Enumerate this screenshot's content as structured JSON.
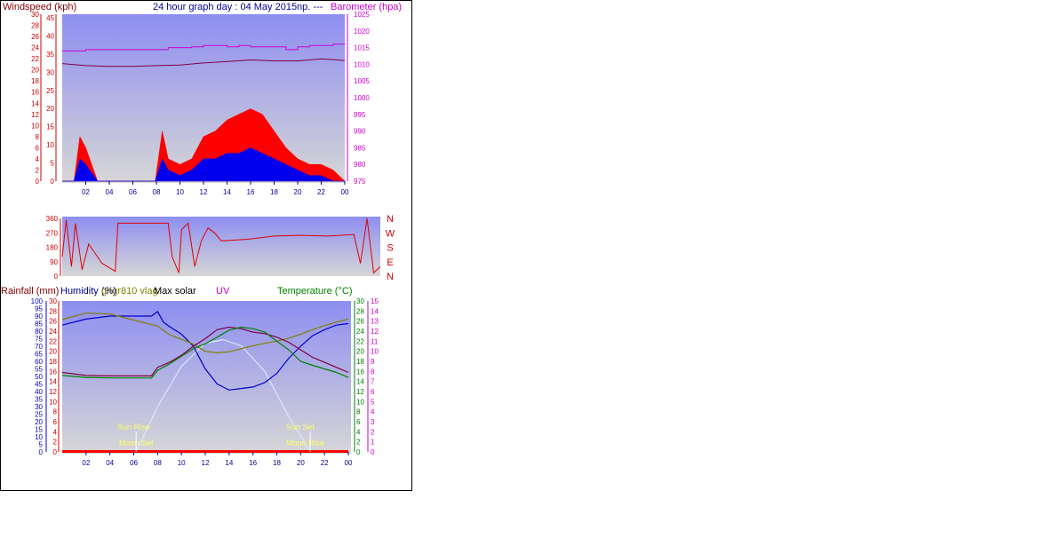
{
  "colors": {
    "plot_top": "#8e8ef2",
    "plot_bottom": "#d6d6d6",
    "gust": "#ff0000",
    "wind": "#0000ee",
    "pressure": "#800040",
    "barometer_axis": "#cc00cc",
    "direction": "#e00000",
    "humidity": "#0000cc",
    "temperature": "#008000",
    "rain_temp_axis": "#cc0000",
    "uv": "#cc00cc",
    "olive": "#808000",
    "solar": "#d8e8ff",
    "sun_moon": "#ffff66",
    "axis_blue": "#000099"
  },
  "panel1": {
    "title": "24 hour graph day : 04 May 2015np. ---",
    "left_label": "Windspeed (kph)",
    "right_label": "Barometer (hpa)"
  },
  "panel3": {
    "label_rain": "Rainfall (mm)",
    "label_humidity": "Humidity (%)",
    "label_dew": "ghgr810 vlag",
    "label_solar": "Max solar",
    "label_uv": "UV",
    "label_temp": "Temperature (°C)",
    "sun_rise": "Sun Rise",
    "sun_set": "Sun Set",
    "moon_set": "Moon Set",
    "moon_rise": "Moon Rise"
  },
  "chart_data": [
    {
      "type": "line",
      "title": "24 hour graph day : 04 May 2015np. ---",
      "x_ticks": [
        "02",
        "04",
        "06",
        "08",
        "10",
        "12",
        "14",
        "16",
        "18",
        "20",
        "22",
        "00"
      ],
      "axes": {
        "windspeed_outer_kph": {
          "label": "Windspeed (kph)",
          "ticks": [
            0,
            2,
            4,
            6,
            8,
            10,
            12,
            14,
            16,
            18,
            20,
            22,
            24,
            26,
            28,
            30
          ]
        },
        "windspeed_inner": {
          "ticks": [
            0,
            5,
            10,
            15,
            20,
            25,
            30,
            35,
            40,
            45
          ]
        },
        "barometer_hpa": {
          "label": "Barometer (hpa)",
          "ticks": [
            975,
            980,
            985,
            990,
            995,
            1000,
            1005,
            1010,
            1015,
            1020,
            1025
          ],
          "ylim": [
            975,
            1025
          ]
        }
      },
      "series": [
        {
          "name": "Windspeed (kph)",
          "x": [
            0,
            1,
            1.5,
            2,
            3,
            4,
            6,
            7.9,
            8.5,
            9,
            10,
            11,
            12,
            13,
            14,
            15,
            16,
            17,
            18,
            19,
            20,
            21,
            22,
            23,
            24
          ],
          "values": [
            0,
            0,
            4,
            3,
            0,
            0,
            0,
            0,
            4,
            2,
            1,
            2,
            4,
            4,
            5,
            5,
            6,
            5,
            4,
            3,
            2,
            1,
            1,
            0,
            0
          ]
        },
        {
          "name": "Gust",
          "x": [
            0,
            1,
            1.5,
            2,
            3,
            4,
            6,
            7.9,
            8.5,
            9,
            10,
            11,
            12,
            13,
            14,
            15,
            16,
            17,
            18,
            19,
            20,
            21,
            22,
            23,
            24
          ],
          "values": [
            0,
            0,
            8,
            6,
            0,
            0,
            0,
            0,
            9,
            4,
            3,
            4,
            8,
            9,
            11,
            12,
            13,
            12,
            9,
            6,
            4,
            3,
            3,
            2,
            0
          ]
        },
        {
          "name": "Pressure (hpa)",
          "x": [
            0,
            2,
            4,
            6,
            8,
            10,
            12,
            14,
            16,
            18,
            20,
            22,
            23,
            24
          ],
          "values": [
            1010.2,
            1009.6,
            1009.4,
            1009.4,
            1009.6,
            1009.8,
            1010.4,
            1010.8,
            1011.3,
            1011,
            1011,
            1011.6,
            1011.4,
            1011.1
          ]
        },
        {
          "name": "Pressure trend",
          "x": [
            0,
            2,
            4,
            6,
            8,
            9,
            11,
            12,
            13,
            14,
            15,
            16,
            18,
            19,
            20,
            21,
            22,
            23,
            24
          ],
          "values": [
            1014,
            1014.4,
            1014.4,
            1014.4,
            1014.4,
            1015,
            1015.2,
            1015.6,
            1015.6,
            1015.2,
            1015.6,
            1015.2,
            1015.2,
            1014.4,
            1015.2,
            1015.6,
            1015.6,
            1016,
            1016
          ]
        }
      ]
    },
    {
      "type": "line",
      "x_ticks": [],
      "axes": {
        "direction_degrees": {
          "ticks": [
            0,
            90,
            180,
            270,
            360
          ],
          "ylim": [
            0,
            360
          ]
        },
        "compass_labels": [
          "N",
          "W",
          "S",
          "E",
          "N"
        ]
      },
      "series": [
        {
          "name": "Wind direction",
          "x": [
            0,
            0.3,
            0.7,
            1,
            1.5,
            2,
            3,
            4,
            4.2,
            8,
            8.3,
            8.8,
            9,
            9.5,
            10,
            10.5,
            11,
            11.5,
            12,
            14,
            16,
            18,
            20,
            22,
            22.5,
            23,
            23.5,
            24
          ],
          "values": [
            120,
            350,
            60,
            330,
            40,
            200,
            80,
            30,
            330,
            330,
            120,
            20,
            290,
            330,
            60,
            220,
            300,
            270,
            220,
            230,
            250,
            255,
            250,
            260,
            80,
            360,
            20,
            60
          ]
        }
      ]
    },
    {
      "type": "line",
      "x_ticks": [
        "02",
        "04",
        "06",
        "08",
        "10",
        "12",
        "14",
        "16",
        "18",
        "20",
        "22",
        "00"
      ],
      "axes": {
        "humidity_percent": {
          "label": "Humidity (%)",
          "ticks": [
            0,
            5,
            10,
            15,
            20,
            25,
            30,
            35,
            40,
            45,
            50,
            55,
            60,
            65,
            70,
            75,
            80,
            85,
            90,
            95,
            100
          ],
          "ylim": [
            0,
            100
          ]
        },
        "rainfall_mm": {
          "label": "Rainfall (mm)",
          "ticks": [
            0,
            2,
            4,
            6,
            8,
            10,
            12,
            14,
            16,
            18,
            20,
            22,
            24,
            26,
            28,
            30
          ],
          "ylim": [
            0,
            30
          ]
        },
        "temperature_c": {
          "label": "Temperature (°C)",
          "ticks": [
            0,
            2,
            4,
            6,
            8,
            10,
            12,
            14,
            16,
            18,
            20,
            22,
            24,
            26,
            28,
            30
          ],
          "ylim": [
            0,
            30
          ]
        },
        "uv": {
          "label": "UV",
          "ticks": [
            0,
            1,
            2,
            3,
            4,
            5,
            6,
            7,
            8,
            9,
            10,
            11,
            12,
            13,
            14,
            15
          ],
          "ylim": [
            0,
            15
          ]
        }
      },
      "series": [
        {
          "name": "Humidity (%)",
          "x": [
            0,
            2,
            4,
            6,
            7.5,
            8,
            8.5,
            9,
            10,
            11,
            12,
            13,
            14,
            15,
            16,
            17,
            18,
            19,
            20,
            21,
            22,
            23,
            24
          ],
          "values": [
            84,
            88,
            90,
            90,
            90,
            93,
            86,
            83,
            78,
            70,
            55,
            45,
            41,
            42,
            43,
            46,
            52,
            62,
            70,
            77,
            81,
            84,
            85
          ]
        },
        {
          "name": "Temperature (°C)",
          "x": [
            0,
            2,
            4,
            6,
            7.5,
            8,
            9,
            10,
            11,
            12,
            13,
            14,
            15,
            16,
            17,
            18,
            19,
            20,
            21,
            22,
            23,
            24
          ],
          "values": [
            15.2,
            14.8,
            14.7,
            14.7,
            14.7,
            16.2,
            17.5,
            19,
            20.5,
            21.5,
            22.8,
            24.2,
            24.8,
            24.5,
            23.8,
            22,
            20.3,
            18,
            17.2,
            16.5,
            15.8,
            14.8
          ]
        },
        {
          "name": "Rain/temp red",
          "x": [
            0,
            2,
            4,
            6,
            7.5,
            8,
            9,
            10,
            11,
            12,
            13,
            14,
            15,
            16,
            17,
            18,
            19,
            20,
            21,
            22,
            23,
            24
          ],
          "values": [
            15.8,
            15.2,
            15.1,
            15.1,
            15.1,
            16.8,
            17.8,
            19.2,
            21,
            22.5,
            24.3,
            24.8,
            24.5,
            23.8,
            23.5,
            22.8,
            21.8,
            20.3,
            18.8,
            17.8,
            16.8,
            15.8
          ]
        },
        {
          "name": "ghgr810 vlag",
          "x": [
            0,
            2,
            4,
            6,
            8,
            9,
            10,
            11,
            12,
            13,
            14,
            15,
            16,
            17,
            18,
            19,
            20,
            21,
            22,
            23,
            24
          ],
          "values": [
            26.3,
            27.6,
            27.4,
            26.2,
            25,
            23.3,
            22.4,
            21.4,
            20,
            19.7,
            19.9,
            20.5,
            21.1,
            21.6,
            22,
            22.6,
            23.4,
            24.3,
            25.1,
            25.8,
            26.4
          ]
        },
        {
          "name": "Max solar",
          "x": [
            6.2,
            8,
            10,
            12,
            13.5,
            15,
            17,
            19,
            20.8
          ],
          "values": [
            0,
            9,
            17,
            21.6,
            22.3,
            21.1,
            16,
            7,
            0
          ]
        },
        {
          "name": "Rainfall (mm)",
          "x": [
            0,
            24
          ],
          "values": [
            0,
            0
          ]
        }
      ]
    }
  ]
}
